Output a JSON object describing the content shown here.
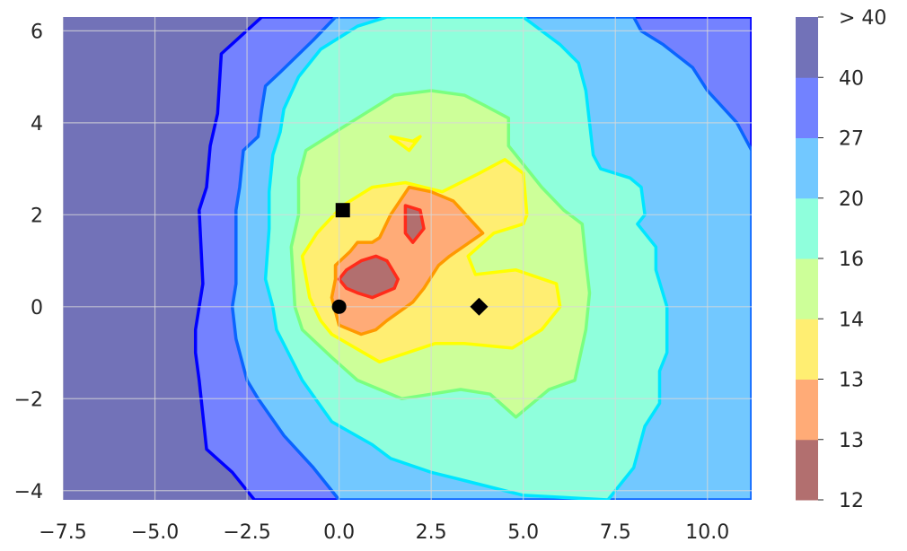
{
  "chart_data": {
    "type": "contour",
    "title": "",
    "xlabel": "",
    "ylabel": "",
    "xlim": [
      -7.5,
      11.2
    ],
    "ylim": [
      -4.2,
      6.3
    ],
    "grid": true,
    "x_ticks": [
      "−7.5",
      "−5.0",
      "−2.5",
      "0.0",
      "2.5",
      "5.0",
      "7.5",
      "10.0"
    ],
    "x_tick_values": [
      -7.5,
      -5.0,
      -2.5,
      0.0,
      2.5,
      5.0,
      7.5,
      10.0
    ],
    "y_ticks": [
      "−4",
      "−2",
      "0",
      "2",
      "4",
      "6"
    ],
    "y_tick_values": [
      -4,
      -2,
      0,
      2,
      4,
      6
    ],
    "colorbar": {
      "levels": [
        "12",
        "13",
        "13",
        "14",
        "16",
        "20",
        "27",
        "40",
        "> 40"
      ],
      "colors": [
        "#b26f6f",
        "#ffab77",
        "#ffee72",
        "#cdff99",
        "#8fffdc",
        "#72c8ff",
        "#7282ff",
        "#7272b8"
      ]
    },
    "contours": [
      {
        "level": "40",
        "fill": "#7272b8",
        "line": null,
        "points": [
          [
            -7.5,
            -4.2
          ],
          [
            11.2,
            -4.2
          ],
          [
            11.2,
            6.3
          ],
          [
            -7.5,
            6.3
          ]
        ]
      },
      {
        "level": "40",
        "fill": "#7482ff",
        "line": "#0000ff",
        "points": [
          [
            -2.1,
            6.3
          ],
          [
            -3.2,
            5.5
          ],
          [
            -3.3,
            4.2
          ],
          [
            -3.5,
            3.5
          ],
          [
            -3.6,
            2.6
          ],
          [
            -3.8,
            2.1
          ],
          [
            -3.7,
            0.5
          ],
          [
            -3.9,
            -0.5
          ],
          [
            -3.9,
            -1.0
          ],
          [
            -3.8,
            -1.6
          ],
          [
            -3.6,
            -3.1
          ],
          [
            -2.9,
            -3.6
          ],
          [
            -2.3,
            -4.2
          ],
          [
            11.2,
            -4.2
          ],
          [
            11.2,
            6.3
          ]
        ]
      },
      {
        "level": "27",
        "fill": "#72c8ff",
        "line": "#0a64ff",
        "points": [
          [
            -0.1,
            6.3
          ],
          [
            -0.7,
            5.8
          ],
          [
            -1.6,
            5.1
          ],
          [
            -2.0,
            4.8
          ],
          [
            -2.1,
            4.3
          ],
          [
            -2.2,
            3.7
          ],
          [
            -2.6,
            3.4
          ],
          [
            -2.7,
            2.6
          ],
          [
            -2.8,
            2.1
          ],
          [
            -2.8,
            0.5
          ],
          [
            -2.9,
            0
          ],
          [
            -2.8,
            -0.7
          ],
          [
            -2.5,
            -1.6
          ],
          [
            -2.2,
            -2.0
          ],
          [
            -1.5,
            -2.8
          ],
          [
            -0.7,
            -3.5
          ],
          [
            0.0,
            -4.2
          ],
          [
            11.2,
            -4.2
          ],
          [
            11.2,
            3.4
          ],
          [
            10.8,
            4.0
          ],
          [
            10.0,
            4.7
          ],
          [
            9.6,
            5.2
          ],
          [
            8.8,
            5.7
          ],
          [
            8.2,
            6.0
          ],
          [
            8.0,
            6.3
          ]
        ]
      },
      {
        "level": "20",
        "fill": "#8fffdc",
        "line": "#00e5ff",
        "points": [
          [
            1.3,
            6.3
          ],
          [
            0.5,
            6.1
          ],
          [
            -0.5,
            5.6
          ],
          [
            -1.1,
            5.0
          ],
          [
            -1.5,
            4.3
          ],
          [
            -1.6,
            3.8
          ],
          [
            -1.8,
            3.3
          ],
          [
            -1.9,
            2.5
          ],
          [
            -1.9,
            1.7
          ],
          [
            -2.0,
            0.6
          ],
          [
            -1.8,
            0.0
          ],
          [
            -1.7,
            -0.5
          ],
          [
            -1.0,
            -1.6
          ],
          [
            -0.2,
            -2.5
          ],
          [
            0.9,
            -3.0
          ],
          [
            1.4,
            -3.3
          ],
          [
            2.5,
            -3.6
          ],
          [
            3.5,
            -3.8
          ],
          [
            5.0,
            -4.1
          ],
          [
            7.3,
            -4.2
          ],
          [
            8.0,
            -3.5
          ],
          [
            8.3,
            -2.6
          ],
          [
            8.7,
            -2.1
          ],
          [
            8.7,
            -1.4
          ],
          [
            8.9,
            -1.0
          ],
          [
            8.9,
            0.0
          ],
          [
            8.6,
            0.8
          ],
          [
            8.6,
            1.3
          ],
          [
            8.1,
            1.8
          ],
          [
            8.3,
            2.0
          ],
          [
            8.2,
            2.6
          ],
          [
            7.9,
            2.8
          ],
          [
            7.1,
            3.0
          ],
          [
            6.9,
            3.3
          ],
          [
            6.8,
            4.0
          ],
          [
            6.7,
            4.7
          ],
          [
            6.5,
            5.3
          ],
          [
            6.0,
            5.7
          ],
          [
            5.5,
            6.0
          ],
          [
            5.0,
            6.3
          ]
        ]
      },
      {
        "level": "16",
        "fill": "#cdff99",
        "line": "#7aff80",
        "points": [
          [
            2.5,
            4.7
          ],
          [
            1.5,
            4.6
          ],
          [
            0.3,
            4.0
          ],
          [
            -0.9,
            3.4
          ],
          [
            -1.1,
            2.8
          ],
          [
            -1.1,
            2.0
          ],
          [
            -1.3,
            1.3
          ],
          [
            -1.2,
            0.0
          ],
          [
            -1.0,
            -0.5
          ],
          [
            -0.2,
            -1.1
          ],
          [
            0.5,
            -1.6
          ],
          [
            1.7,
            -2.0
          ],
          [
            2.5,
            -1.9
          ],
          [
            3.3,
            -1.8
          ],
          [
            4.1,
            -1.9
          ],
          [
            4.8,
            -2.4
          ],
          [
            5.7,
            -1.8
          ],
          [
            6.4,
            -1.6
          ],
          [
            6.7,
            -0.5
          ],
          [
            6.8,
            0.3
          ],
          [
            6.7,
            1.0
          ],
          [
            6.6,
            1.8
          ],
          [
            6.1,
            2.1
          ],
          [
            5.5,
            2.6
          ],
          [
            5.1,
            3.0
          ],
          [
            4.6,
            3.5
          ],
          [
            4.6,
            4.1
          ],
          [
            3.9,
            4.4
          ],
          [
            3.4,
            4.6
          ]
        ]
      },
      {
        "level": "14",
        "fill": "#ffee72",
        "line": "#ffff00",
        "points": [
          [
            0.1,
            2.2
          ],
          [
            -0.6,
            1.6
          ],
          [
            -1.0,
            1.1
          ],
          [
            -0.8,
            0.2
          ],
          [
            -0.5,
            -0.3
          ],
          [
            -0.2,
            -0.6
          ],
          [
            1.1,
            -1.2
          ],
          [
            2.6,
            -0.8
          ],
          [
            3.4,
            -0.8
          ],
          [
            4.7,
            -0.9
          ],
          [
            5.5,
            -0.5
          ],
          [
            6.0,
            0.0
          ],
          [
            5.9,
            0.5
          ],
          [
            4.8,
            0.8
          ],
          [
            3.7,
            0.7
          ],
          [
            3.5,
            1.1
          ],
          [
            4.2,
            1.6
          ],
          [
            5.0,
            1.8
          ],
          [
            5.1,
            2.0
          ],
          [
            5.0,
            2.9
          ],
          [
            4.5,
            3.2
          ],
          [
            3.8,
            2.9
          ],
          [
            2.8,
            2.5
          ],
          [
            1.8,
            2.7
          ],
          [
            0.9,
            2.6
          ]
        ]
      },
      {
        "level": "14",
        "fill": "#ffee72",
        "line": "#ffff00",
        "points": [
          [
            1.4,
            3.7
          ],
          [
            2.0,
            3.6
          ],
          [
            2.2,
            3.7
          ],
          [
            2.1,
            3.6
          ],
          [
            1.9,
            3.4
          ]
        ]
      },
      {
        "level": "13",
        "fill": "#ffab77",
        "line": "#ff9900",
        "points": [
          [
            1.9,
            2.6
          ],
          [
            2.5,
            2.5
          ],
          [
            3.1,
            2.3
          ],
          [
            3.9,
            1.6
          ],
          [
            3.0,
            1.1
          ],
          [
            2.7,
            0.9
          ],
          [
            2.3,
            0.4
          ],
          [
            2.0,
            0.1
          ],
          [
            1.3,
            -0.3
          ],
          [
            1.0,
            -0.5
          ],
          [
            0.6,
            -0.6
          ],
          [
            0.0,
            -0.4
          ],
          [
            -0.2,
            0.2
          ],
          [
            -0.1,
            0.6
          ],
          [
            -0.1,
            0.9
          ],
          [
            0.3,
            1.2
          ],
          [
            0.5,
            1.4
          ],
          [
            0.9,
            1.4
          ],
          [
            1.1,
            1.5
          ],
          [
            1.4,
            2.0
          ]
        ]
      },
      {
        "level": "12",
        "fill": "#b26f6f",
        "line": "#ff2b1a",
        "points": [
          [
            0.2,
            0.8
          ],
          [
            0.6,
            1.0
          ],
          [
            1.0,
            1.1
          ],
          [
            1.3,
            1.0
          ],
          [
            1.6,
            0.6
          ],
          [
            1.5,
            0.4
          ],
          [
            0.9,
            0.2
          ],
          [
            0.5,
            0.3
          ],
          [
            0.2,
            0.4
          ],
          [
            0.0,
            0.6
          ]
        ]
      },
      {
        "level": "12",
        "fill": "#b26f6f",
        "line": "#ff2b1a",
        "points": [
          [
            1.8,
            2.2
          ],
          [
            2.2,
            2.1
          ],
          [
            2.3,
            1.7
          ],
          [
            2.0,
            1.4
          ],
          [
            1.8,
            1.6
          ]
        ]
      }
    ],
    "markers": [
      {
        "shape": "square",
        "x": 0.1,
        "y": 2.1
      },
      {
        "shape": "circle",
        "x": 0.0,
        "y": 0.0
      },
      {
        "shape": "diamond",
        "x": 3.8,
        "y": 0.0
      }
    ]
  }
}
